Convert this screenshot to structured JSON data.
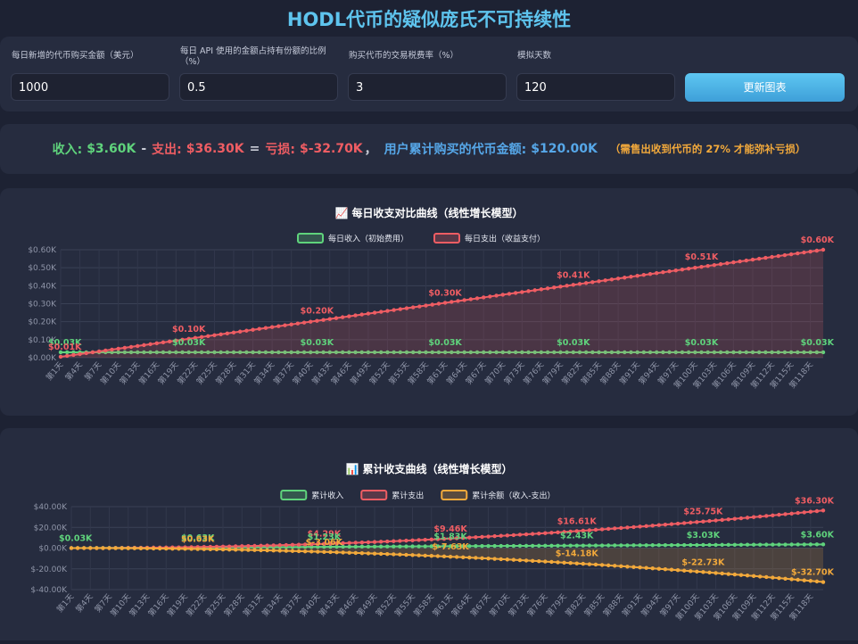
{
  "page": {
    "title": "HODL代币的疑似庞氏不可持续性"
  },
  "controls": {
    "fields": [
      {
        "label": "每日新增的代币购买金额（美元）",
        "value": "1000"
      },
      {
        "label": "每日 API 使用的金额占持有份额的比例（%）",
        "value": "0.5"
      },
      {
        "label": "购买代币的交易税费率（%）",
        "value": "3"
      },
      {
        "label": "模拟天数",
        "value": "120"
      }
    ],
    "update_label": "更新图表"
  },
  "summary": {
    "income_label": "收入:",
    "income_value": "$3.60K",
    "minus": "-",
    "expense_label": "支出:",
    "expense_value": "$36.30K",
    "equals": "=",
    "loss_label": "亏损:",
    "loss_value": "$-32.70K",
    "comma": "，",
    "bought_label": "用户累计购买的代币金额:",
    "bought_value": "$120.00K",
    "note": "（需售出收到代币的 27% 才能弥补亏损）"
  },
  "colors": {
    "income": "#5fd37c",
    "expense": "#ef5d63",
    "balance": "#f2a93b",
    "title": "#5ec4ee"
  },
  "chart_data": [
    {
      "type": "line",
      "title": "📈 每日收支对比曲线（线性增长模型）",
      "x_start": 1,
      "x_end": 120,
      "x_tick_prefix": "第",
      "x_tick_suffix": "天",
      "x_tick_every": 3,
      "y_ticks": [
        "$0.00K",
        "$0.10K",
        "$0.20K",
        "$0.30K",
        "$0.40K",
        "$0.50K",
        "$0.60K"
      ],
      "ylim": [
        0,
        0.6
      ],
      "grid": true,
      "legend_position": "top",
      "series": [
        {
          "name": "每日收入（初始费用）",
          "color": "#5fd37c",
          "start": 0.03,
          "end": 0.03,
          "fill": false
        },
        {
          "name": "每日支出（收益支付）",
          "color": "#ef5d63",
          "start": 0.005,
          "end": 0.6,
          "fill": true
        }
      ],
      "data_labels": [
        {
          "series": 0,
          "day": 1,
          "text": "$0.03K"
        },
        {
          "series": 1,
          "day": 1,
          "text": "$0.01K"
        },
        {
          "series": 0,
          "day": 21,
          "text": "$0.03K"
        },
        {
          "series": 1,
          "day": 21,
          "text": "$0.10K"
        },
        {
          "series": 0,
          "day": 41,
          "text": "$0.03K"
        },
        {
          "series": 1,
          "day": 41,
          "text": "$0.20K"
        },
        {
          "series": 0,
          "day": 61,
          "text": "$0.03K"
        },
        {
          "series": 1,
          "day": 61,
          "text": "$0.30K"
        },
        {
          "series": 0,
          "day": 81,
          "text": "$0.03K"
        },
        {
          "series": 1,
          "day": 81,
          "text": "$0.41K"
        },
        {
          "series": 0,
          "day": 101,
          "text": "$0.03K"
        },
        {
          "series": 1,
          "day": 101,
          "text": "$0.51K"
        },
        {
          "series": 0,
          "day": 120,
          "text": "$0.03K"
        },
        {
          "series": 1,
          "day": 120,
          "text": "$0.60K"
        }
      ]
    },
    {
      "type": "line",
      "title": "📊 累计收支曲线（线性增长模型）",
      "x_start": 1,
      "x_end": 120,
      "x_tick_prefix": "第",
      "x_tick_suffix": "天",
      "x_tick_every": 3,
      "y_ticks": [
        "$-40.00K",
        "$-20.00K",
        "$0.00K",
        "$20.00K",
        "$40.00K"
      ],
      "ylim": [
        -40,
        40
      ],
      "grid": true,
      "legend_position": "top",
      "series": [
        {
          "name": "累计收入",
          "color": "#5fd37c",
          "start": 0.03,
          "end": 3.6,
          "power": 1,
          "fill": false
        },
        {
          "name": "累计支出",
          "color": "#ef5d63",
          "start": 0.0,
          "end": 36.3,
          "power": 2,
          "fill": false
        },
        {
          "name": "累计余额（收入-支出）",
          "color": "#f2a93b",
          "start": 0.03,
          "end": -32.7,
          "power": 2,
          "fill": true
        }
      ],
      "data_labels": [
        {
          "series": 0,
          "day": 1,
          "text": "$0.03K"
        },
        {
          "series": 0,
          "day": 21,
          "text": "$0.63K"
        },
        {
          "series": 2,
          "day": 21,
          "text": "$0.63K"
        },
        {
          "series": 1,
          "day": 41,
          "text": "$4.29K"
        },
        {
          "series": 0,
          "day": 41,
          "text": "$1.23K"
        },
        {
          "series": 2,
          "day": 41,
          "text": "$-3.06K"
        },
        {
          "series": 1,
          "day": 61,
          "text": "$9.46K"
        },
        {
          "series": 0,
          "day": 61,
          "text": "$1.83K"
        },
        {
          "series": 2,
          "day": 61,
          "text": "$-7.63K"
        },
        {
          "series": 1,
          "day": 81,
          "text": "$16.61K"
        },
        {
          "series": 0,
          "day": 81,
          "text": "$2.43K"
        },
        {
          "series": 2,
          "day": 81,
          "text": "$-14.18K"
        },
        {
          "series": 1,
          "day": 101,
          "text": "$25.75K"
        },
        {
          "series": 0,
          "day": 101,
          "text": "$3.03K"
        },
        {
          "series": 2,
          "day": 101,
          "text": "$-22.73K"
        },
        {
          "series": 1,
          "day": 120,
          "text": "$36.30K"
        },
        {
          "series": 0,
          "day": 120,
          "text": "$3.60K"
        },
        {
          "series": 2,
          "day": 120,
          "text": "$-32.70K"
        }
      ]
    }
  ]
}
